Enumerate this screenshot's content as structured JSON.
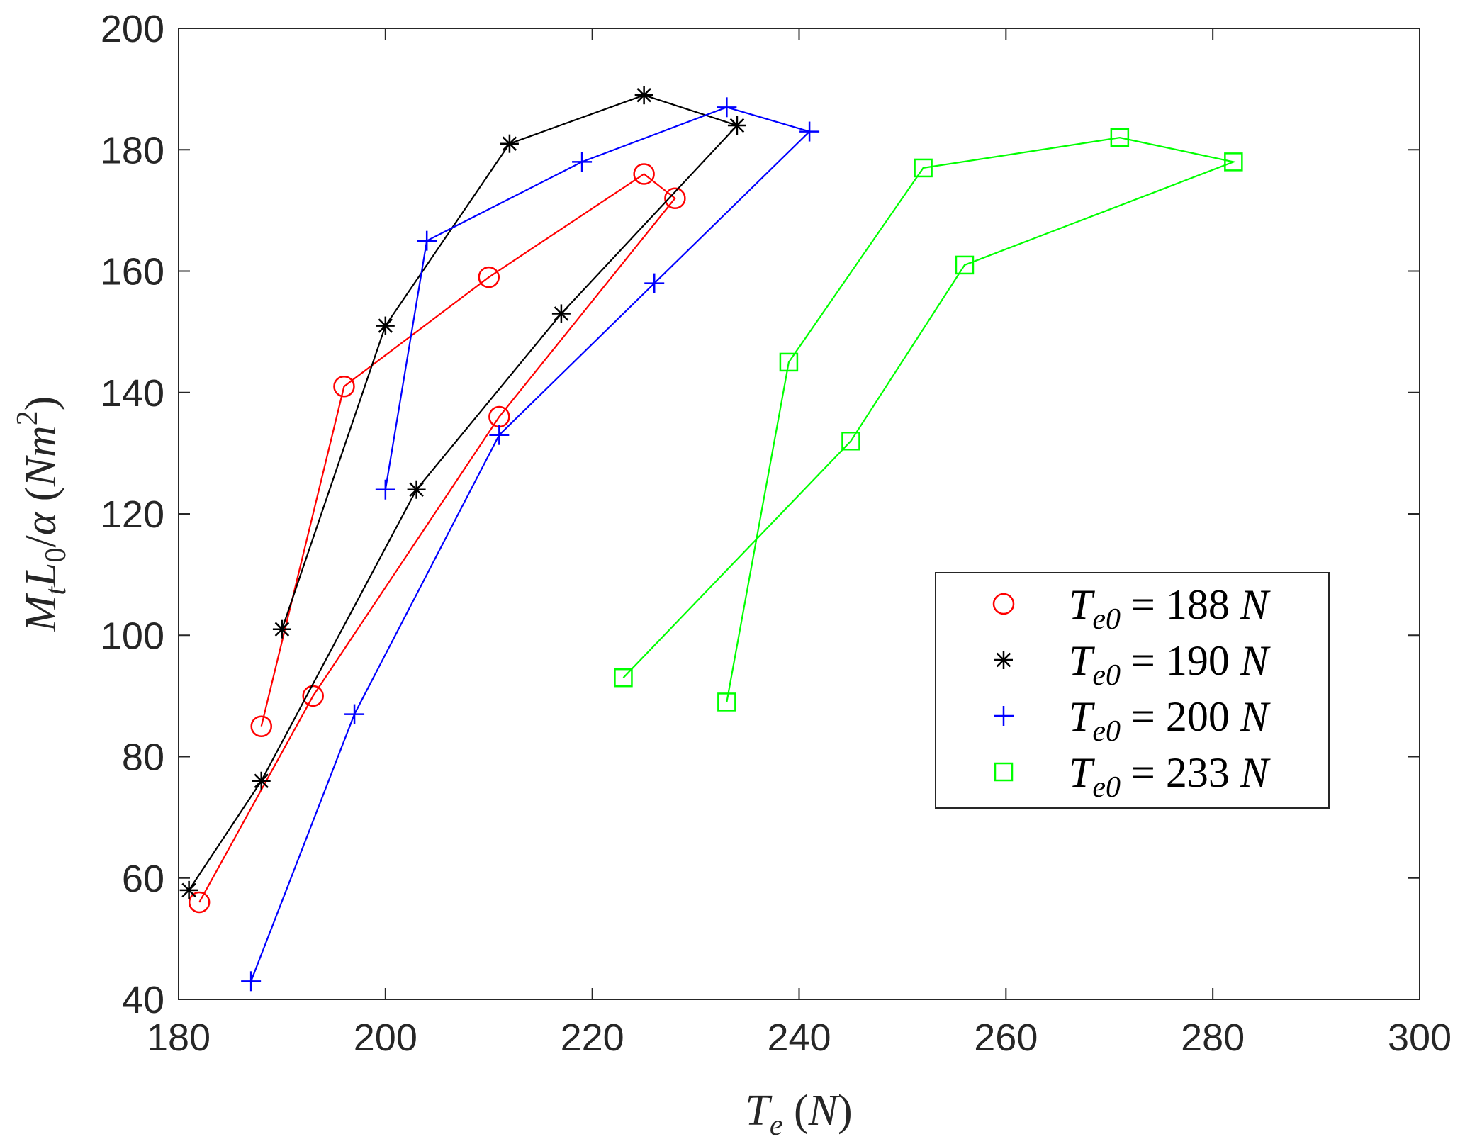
{
  "chart_data": {
    "type": "line",
    "title": "",
    "xlabel": "T_e (N)",
    "ylabel": "M_t L_0/α (Nm^2)",
    "xlim": [
      180,
      300
    ],
    "ylim": [
      40,
      200
    ],
    "xticks": [
      180,
      200,
      220,
      240,
      260,
      280,
      300
    ],
    "yticks": [
      40,
      60,
      80,
      100,
      120,
      140,
      160,
      180,
      200
    ],
    "grid": false,
    "legend_position": "right",
    "series": [
      {
        "name": "T_e0 = 188 N",
        "color": "#ff0000",
        "marker": "circle",
        "x": [
          182,
          193,
          211,
          228,
          225,
          210,
          196,
          188
        ],
        "y": [
          56,
          90,
          136,
          172,
          176,
          159,
          141,
          85
        ]
      },
      {
        "name": "T_e0 = 190 N",
        "color": "#000000",
        "marker": "asterisk",
        "x": [
          181,
          188,
          203,
          217,
          234,
          225,
          212,
          200,
          190
        ],
        "y": [
          58,
          76,
          124,
          153,
          184,
          189,
          181,
          151,
          101
        ]
      },
      {
        "name": "T_e0 = 200 N",
        "color": "#0000ff",
        "marker": "plus",
        "x": [
          187,
          197,
          211,
          226,
          241,
          233,
          219,
          204,
          200
        ],
        "y": [
          43,
          87,
          133,
          158,
          183,
          187,
          178,
          165,
          124
        ]
      },
      {
        "name": "T_e0 = 233 N",
        "color": "#00ff00",
        "marker": "square",
        "x": [
          223,
          245,
          256,
          282,
          271,
          252,
          239,
          233
        ],
        "y": [
          93,
          132,
          161,
          178,
          182,
          177,
          145,
          89
        ]
      }
    ]
  }
}
